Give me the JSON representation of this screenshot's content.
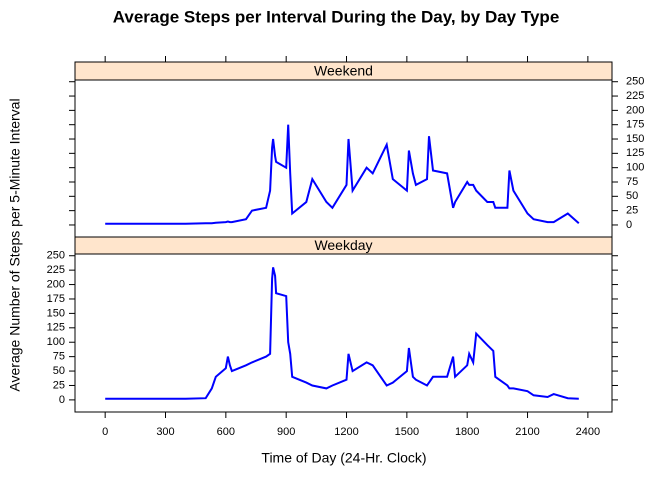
{
  "chart_data": {
    "type": "line",
    "title": "Average Steps per Interval During the Day, by Day Type",
    "x_label": "Time of Day (24-Hr. Clock)",
    "y_label": "Average Number of Steps per 5-Minute Interval",
    "x": [
      0,
      100,
      200,
      300,
      400,
      500,
      530,
      550,
      600,
      610,
      620,
      630,
      700,
      730,
      800,
      820,
      830,
      835,
      845,
      850,
      900,
      910,
      920,
      930,
      1000,
      1030,
      1100,
      1130,
      1200,
      1210,
      1230,
      1300,
      1330,
      1400,
      1430,
      1500,
      1510,
      1530,
      1545,
      1600,
      1610,
      1630,
      1700,
      1730,
      1740,
      1800,
      1810,
      1830,
      1845,
      1900,
      1930,
      1940,
      2000,
      2010,
      2030,
      2100,
      2130,
      2200,
      2230,
      2300,
      2355
    ],
    "series": [
      {
        "name": "Weekend",
        "color": "#0000ff",
        "values": [
          2,
          2,
          2,
          2,
          2,
          3,
          3,
          4,
          5,
          6,
          5,
          5,
          10,
          25,
          30,
          60,
          135,
          150,
          120,
          110,
          100,
          175,
          90,
          20,
          40,
          80,
          40,
          30,
          70,
          150,
          60,
          100,
          90,
          140,
          80,
          60,
          130,
          90,
          70,
          80,
          155,
          95,
          90,
          30,
          40,
          75,
          70,
          70,
          60,
          40,
          40,
          30,
          30,
          95,
          60,
          20,
          10,
          5,
          5,
          20,
          3
        ]
      },
      {
        "name": "Weekday",
        "color": "#0000ff",
        "values": [
          2,
          2,
          2,
          2,
          2,
          3,
          20,
          40,
          55,
          75,
          60,
          50,
          60,
          65,
          75,
          80,
          210,
          230,
          215,
          185,
          180,
          100,
          80,
          40,
          30,
          25,
          20,
          25,
          35,
          80,
          50,
          65,
          60,
          25,
          30,
          50,
          90,
          40,
          35,
          25,
          30,
          40,
          40,
          75,
          40,
          60,
          80,
          65,
          115,
          95,
          85,
          40,
          25,
          20,
          20,
          15,
          8,
          5,
          10,
          3,
          2
        ]
      }
    ],
    "xlim": [
      -150,
      2520
    ],
    "xticks": [
      0,
      300,
      600,
      900,
      1200,
      1500,
      1800,
      2100,
      2400
    ],
    "ylim": [
      -21,
      253
    ],
    "yticks": [
      0,
      25,
      50,
      75,
      100,
      125,
      150,
      175,
      200,
      225,
      250
    ],
    "strip_color": "#ffe5cc"
  }
}
